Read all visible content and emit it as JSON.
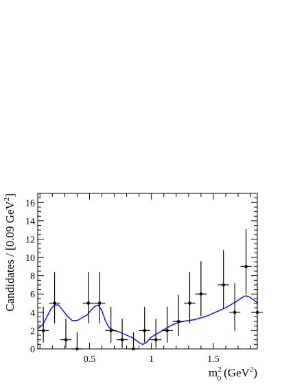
{
  "chart_data": {
    "type": "scatter",
    "x": [
      0.127,
      0.218,
      0.309,
      0.4,
      0.491,
      0.582,
      0.673,
      0.764,
      0.855,
      0.945,
      1.036,
      1.127,
      1.218,
      1.309,
      1.4,
      1.582,
      1.673,
      1.764,
      1.855
    ],
    "y": [
      2,
      5,
      1,
      0,
      5,
      5,
      2,
      1,
      0,
      2,
      1,
      2,
      3,
      5,
      6,
      7,
      4,
      9,
      4
    ],
    "yerr_low": [
      1.3,
      2.2,
      0.9,
      0,
      2.2,
      2.2,
      1.3,
      0.9,
      0,
      1.3,
      0.9,
      1.3,
      1.6,
      2.2,
      2.4,
      2.6,
      2.0,
      3.0,
      2.0
    ],
    "yerr_high": [
      2.6,
      3.4,
      2.3,
      1.8,
      3.4,
      3.4,
      2.6,
      2.3,
      1.8,
      2.6,
      2.3,
      2.6,
      2.9,
      3.4,
      3.6,
      3.8,
      3.2,
      4.1,
      3.2
    ],
    "xerr": 0.045,
    "fit": {
      "x": [
        0.082,
        0.12,
        0.16,
        0.19,
        0.22,
        0.25,
        0.28,
        0.32,
        0.36,
        0.4,
        0.44,
        0.48,
        0.51,
        0.54,
        0.57,
        0.6,
        0.63,
        0.66,
        0.7,
        0.75,
        0.8,
        0.85,
        0.88,
        0.91,
        0.93,
        0.96,
        1.0,
        1.05,
        1.1,
        1.15,
        1.2,
        1.25,
        1.3,
        1.35,
        1.4,
        1.45,
        1.5,
        1.55,
        1.6,
        1.65,
        1.7,
        1.73,
        1.76,
        1.79,
        1.82,
        1.86
      ],
      "y": [
        2.2,
        2.6,
        3.6,
        4.4,
        4.8,
        4.8,
        4.3,
        3.6,
        3.1,
        3.1,
        3.4,
        3.7,
        4.2,
        4.6,
        4.8,
        4.2,
        3.0,
        2.3,
        2.0,
        1.8,
        1.5,
        1.2,
        0.9,
        0.6,
        0.5,
        0.7,
        1.3,
        1.7,
        2.1,
        2.5,
        2.8,
        3.0,
        3.1,
        3.2,
        3.4,
        3.6,
        3.9,
        4.2,
        4.5,
        4.9,
        5.3,
        5.6,
        5.8,
        5.7,
        5.4,
        5.0
      ]
    },
    "xlim": [
      0.082,
      1.855
    ],
    "ylim": [
      0,
      17
    ],
    "x_ticks": [
      0.5,
      1,
      1.5
    ],
    "x_tick_labels": [
      "0.5",
      "1",
      "1.5"
    ],
    "y_ticks": [
      0,
      2,
      4,
      6,
      8,
      10,
      12,
      14,
      16
    ],
    "y_tick_labels": [
      "0",
      "2",
      "4",
      "6",
      "8",
      "10",
      "12",
      "14",
      "16"
    ],
    "xlabel": "m",
    "xlabel_sup": "2",
    "xlabel_sub": "0",
    "xlabel_unit": "(GeV",
    "xlabel_unit_sup": "2",
    "xlabel_unit_close": ")",
    "ylabel": "Candidates / [0.09 GeV",
    "ylabel_sup": "2",
    "ylabel_close": "]",
    "colors": {
      "data": "#000000",
      "fit": "#1f1fe0",
      "axis": "#000000"
    },
    "grid": false
  }
}
